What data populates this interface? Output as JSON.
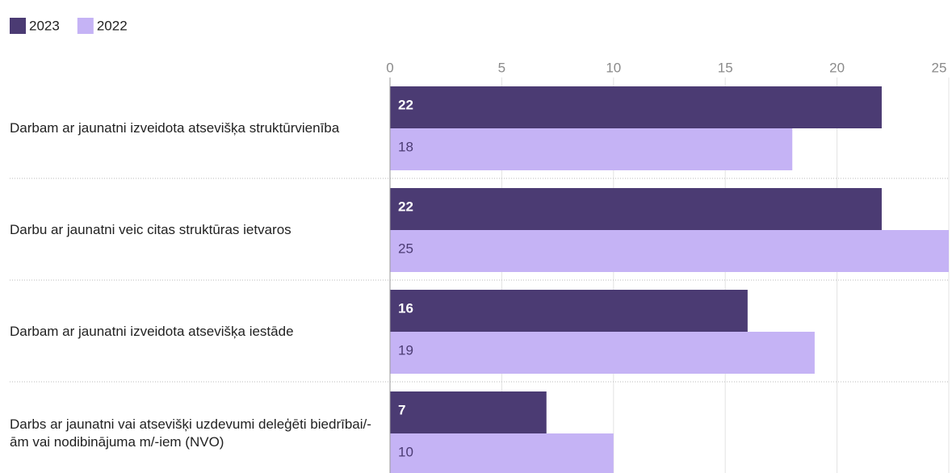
{
  "chart_data": {
    "type": "hbar",
    "categories": [
      "Darbam ar jaunatni izveidota atsevišķa struktūrvienība",
      "Darbu ar jaunatni veic citas struktūras ietvaros",
      "Darbam ar jaunatni izveidota atsevišķa iestāde",
      "Darbs ar jaunatni vai atsevišķi uzdevumi deleģēti biedrībai/-ām vai nodibinājuma m/-iem (NVO)"
    ],
    "series": [
      {
        "name": "2023",
        "color": "#4b3b73",
        "values": [
          22,
          22,
          16,
          7
        ]
      },
      {
        "name": "2022",
        "color": "#c5b3f5",
        "values": [
          18,
          25,
          19,
          10
        ]
      }
    ],
    "xlim": [
      0,
      25
    ],
    "xticks": [
      0,
      5,
      10,
      15,
      20,
      25
    ],
    "grid": true,
    "legend": "top-left"
  }
}
